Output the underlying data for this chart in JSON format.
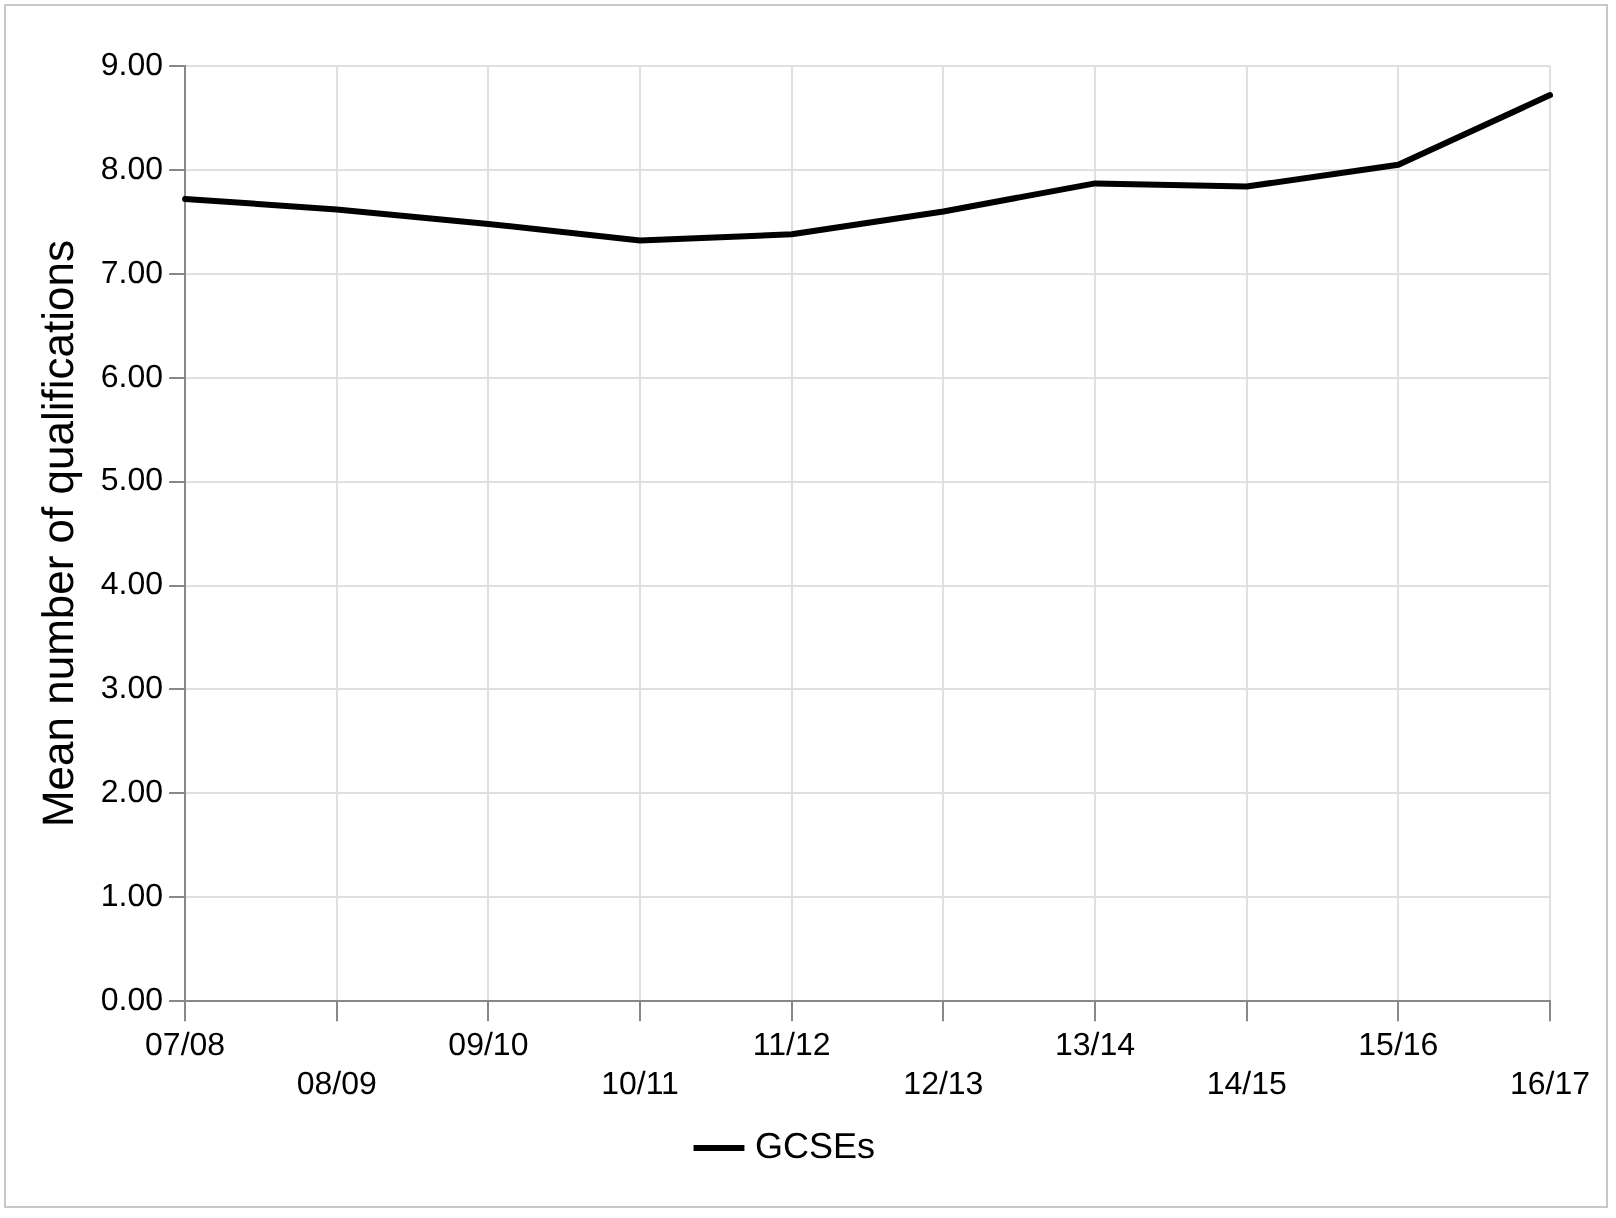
{
  "chart_data": {
    "type": "line",
    "ylabel": "Mean number of qualifications",
    "categories": [
      "07/08",
      "08/09",
      "09/10",
      "10/11",
      "11/12",
      "12/13",
      "13/14",
      "14/15",
      "15/16",
      "16/17"
    ],
    "series": [
      {
        "name": "GCSEs",
        "color": "#000000",
        "values": [
          7.72,
          7.62,
          7.48,
          7.32,
          7.38,
          7.6,
          7.87,
          7.84,
          8.05,
          8.72
        ]
      }
    ],
    "ylim": [
      0,
      9
    ],
    "yticks": [
      {
        "value": 0,
        "label": "0.00"
      },
      {
        "value": 1,
        "label": "1.00"
      },
      {
        "value": 2,
        "label": "2.00"
      },
      {
        "value": 3,
        "label": "3.00"
      },
      {
        "value": 4,
        "label": "4.00"
      },
      {
        "value": 5,
        "label": "5.00"
      },
      {
        "value": 6,
        "label": "6.00"
      },
      {
        "value": 7,
        "label": "7.00"
      },
      {
        "value": 8,
        "label": "8.00"
      },
      {
        "value": 9,
        "label": "9.00"
      }
    ],
    "grid": true,
    "legend": "bottom",
    "marker": "none",
    "line_style": "solid"
  }
}
